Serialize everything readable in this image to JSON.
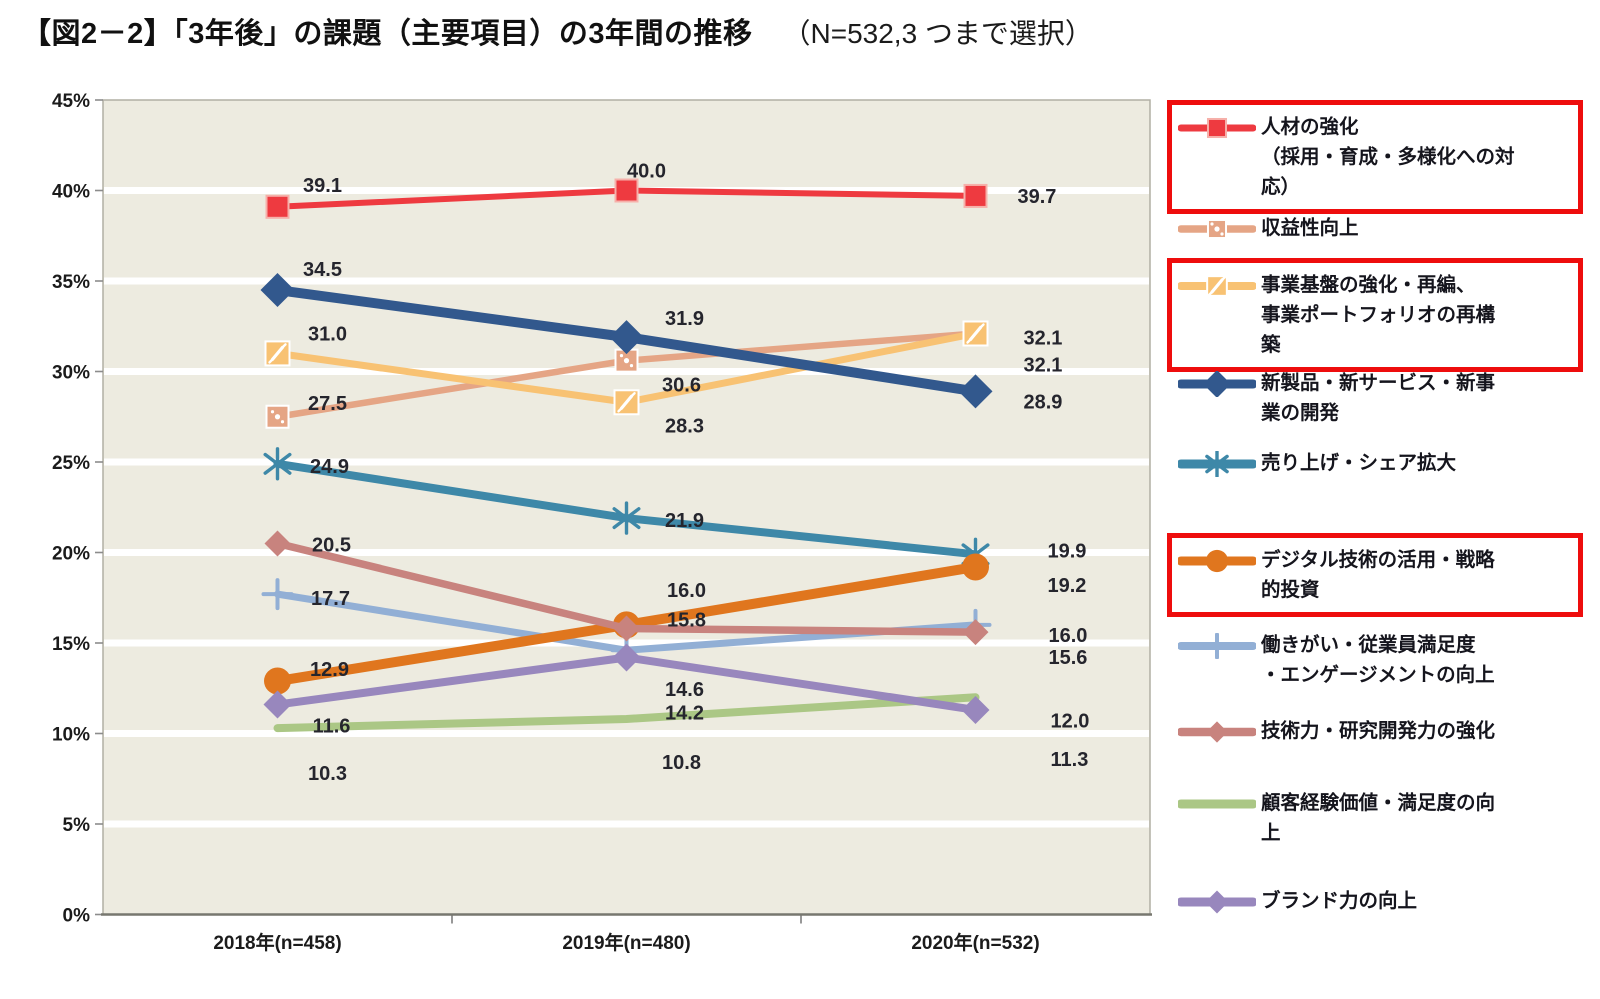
{
  "title": {
    "main": "【図2－2】「3年後」の課題（主要項目）の3年間の推移",
    "suffix": "（N=532,3 つまで選択）"
  },
  "chart_data": {
    "type": "line",
    "title": "「3年後」の課題（主要項目）の3年間の推移",
    "categories": [
      "2018年(n=458)",
      "2019年(n=480)",
      "2020年(n=532)"
    ],
    "y_axis": {
      "min": 0,
      "max": 45,
      "step": 5,
      "tick_suffix": "%"
    },
    "grid": "horizontal-white-on-beige",
    "legend_position": "right",
    "plot_background": "#edebe0",
    "series": [
      {
        "name": "人材の強化（採用・育成・多様化への対応）",
        "label_lines": [
          "人材の強化",
          "（採用・育成・多様化への対",
          "応）"
        ],
        "values": [
          39.1,
          40.0,
          39.7
        ],
        "color": "#ee3a40",
        "marker": "square",
        "highlighted": true
      },
      {
        "name": "収益性向上",
        "label_lines": [
          "収益性向上"
        ],
        "values": [
          27.5,
          30.6,
          32.1
        ],
        "color": "#e5a585",
        "marker": "square-pattern-dots",
        "highlighted": false
      },
      {
        "name": "事業基盤の強化・再編、事業ポートフォリオの再構築",
        "label_lines": [
          "事業基盤の強化・再編、",
          "事業ポートフォリオの再構",
          "築"
        ],
        "values": [
          31.0,
          28.3,
          32.1
        ],
        "color": "#f8c273",
        "marker": "square-pattern-hatch",
        "highlighted": true
      },
      {
        "name": "新製品・新サービス・新事業の開発",
        "label_lines": [
          "新製品・新サービス・新事",
          "業の開発"
        ],
        "values": [
          34.5,
          31.9,
          28.9
        ],
        "color": "#32588d",
        "marker": "diamond",
        "highlighted": false
      },
      {
        "name": "売り上げ・シェア拡大",
        "label_lines": [
          "売り上げ・シェア拡大"
        ],
        "values": [
          24.9,
          21.9,
          19.9
        ],
        "color": "#3e88a8",
        "marker": "asterisk",
        "highlighted": false
      },
      {
        "name": "デジタル技術の活用・戦略的投資",
        "label_lines": [
          "デジタル技術の活用・戦略",
          "的投資"
        ],
        "values": [
          12.9,
          16.0,
          19.2
        ],
        "color": "#e0761e",
        "marker": "circle",
        "highlighted": true
      },
      {
        "name": "働きがい・従業員満足度・エンゲージメントの向上",
        "label_lines": [
          "働きがい・従業員満足度",
          "・エンゲージメントの向上"
        ],
        "values": [
          17.7,
          14.6,
          16.0
        ],
        "color": "#92afd5",
        "marker": "plus",
        "highlighted": false
      },
      {
        "name": "技術力・研究開発力の強化",
        "label_lines": [
          "技術力・研究開発力の強化"
        ],
        "values": [
          20.5,
          15.8,
          15.6
        ],
        "color": "#c8837e",
        "marker": "diamond",
        "highlighted": false
      },
      {
        "name": "顧客経験価値・満足度の向上",
        "label_lines": [
          "顧客経験価値・満足度の向",
          "上"
        ],
        "values": [
          10.3,
          10.8,
          12.0
        ],
        "color": "#abc785",
        "marker": "none",
        "highlighted": false
      },
      {
        "name": "ブランド力の向上",
        "label_lines": [
          "ブランド力の向上"
        ],
        "values": [
          11.6,
          14.2,
          11.3
        ],
        "color": "#9887bd",
        "marker": "diamond",
        "highlighted": false
      }
    ]
  }
}
